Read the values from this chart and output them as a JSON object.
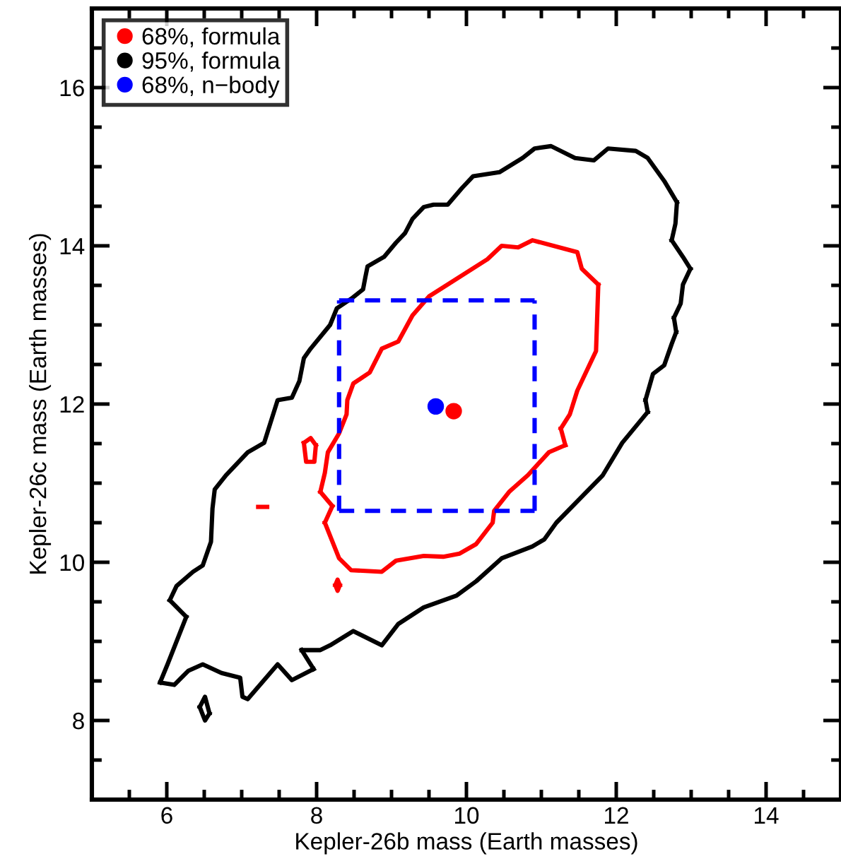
{
  "chart_data": {
    "type": "line",
    "xlabel": "Kepler-26b mass (Earth masses)",
    "ylabel": "Kepler-26c mass (Earth masses)",
    "xlim": [
      5,
      15
    ],
    "ylim": [
      7,
      17
    ],
    "xticks": [
      6,
      8,
      10,
      12,
      14
    ],
    "yticks": [
      8,
      10,
      12,
      14,
      16
    ],
    "grid": false,
    "legend": "top left",
    "marker": "none",
    "series": [
      {
        "name": "68%, formula",
        "color": "#ff0000",
        "x": [
          8.05,
          8.21
        ],
        "values": [
          10.89,
          10.71
        ]
      },
      {
        "color": "#ff0000",
        "x": [
          8.11,
          8.21
        ],
        "values": [
          10.5,
          10.71
        ]
      },
      {
        "color": "#ff0000",
        "x": [
          8.11,
          8.3,
          8.46,
          8.87,
          9.06,
          9.43,
          9.69,
          9.91,
          10.13,
          10.35,
          10.37,
          10.57,
          10.82,
          11.1,
          11.32
        ],
        "values": [
          10.5,
          10.05,
          9.9,
          9.88,
          10.02,
          10.08,
          10.07,
          10.11,
          10.23,
          10.5,
          10.65,
          10.89,
          11.1,
          11.39,
          11.48
        ]
      },
      {
        "color": "#ff0000",
        "x": [
          11.26,
          11.32
        ],
        "values": [
          11.69,
          11.48
        ]
      },
      {
        "color": "#ff0000",
        "x": [
          11.26,
          11.38,
          11.48,
          11.73,
          11.76
        ],
        "values": [
          11.69,
          11.87,
          12.17,
          12.67,
          13.51
        ]
      },
      {
        "color": "#ff0000",
        "x": [
          8.05,
          8.11,
          8.15,
          8.3,
          8.4,
          8.41,
          8.49,
          8.71,
          8.87,
          9.09,
          9.28,
          9.5,
          10.28,
          10.47,
          10.69,
          10.88,
          11.48,
          11.54,
          11.76
        ],
        "values": [
          10.89,
          11.13,
          11.39,
          11.63,
          11.87,
          12.05,
          12.26,
          12.4,
          12.7,
          12.79,
          13.12,
          13.36,
          13.83,
          14.0,
          13.98,
          14.07,
          13.92,
          13.71,
          13.51
        ]
      },
      {
        "color": "#ff0000",
        "x": [
          7.83,
          7.92,
          7.99
        ],
        "values": [
          11.51,
          11.57,
          11.48
        ]
      },
      {
        "color": "#ff0000",
        "x": [
          7.83,
          7.86,
          7.97,
          7.99
        ],
        "values": [
          11.51,
          11.27,
          11.27,
          11.48
        ]
      },
      {
        "color": "#ff0000",
        "x": [
          7.22,
          7.34
        ],
        "values": [
          10.7,
          10.7
        ]
      },
      {
        "color": "#ff0000",
        "x": [
          8.25,
          8.28,
          8.31
        ],
        "values": [
          9.71,
          9.78,
          9.71
        ]
      },
      {
        "color": "#ff0000",
        "x": [
          8.25,
          8.28,
          8.31
        ],
        "values": [
          9.71,
          9.64,
          9.71
        ]
      },
      {
        "name": "95%, formula",
        "color": "#000000",
        "x": [
          5.91,
          6.1,
          6.29,
          6.48,
          6.73,
          6.98,
          7.01,
          7.08,
          7.48,
          7.67,
          7.96
        ],
        "values": [
          8.48,
          8.45,
          8.63,
          8.71,
          8.6,
          8.54,
          8.3,
          8.27,
          8.71,
          8.51,
          8.65
        ]
      },
      {
        "color": "#000000",
        "x": [
          7.8,
          7.96
        ],
        "values": [
          8.89,
          8.65
        ]
      },
      {
        "color": "#000000",
        "x": [
          7.8,
          8.05,
          8.18,
          8.49,
          8.87,
          9.09,
          9.43,
          9.87,
          10.13,
          10.47,
          10.88,
          11.04,
          11.2,
          11.82,
          12.08,
          12.42
        ],
        "values": [
          8.89,
          8.89,
          8.95,
          9.13,
          8.95,
          9.22,
          9.43,
          9.58,
          9.76,
          10.05,
          10.2,
          10.29,
          10.5,
          11.1,
          11.51,
          11.9
        ]
      },
      {
        "color": "#000000",
        "x": [
          12.39,
          12.42
        ],
        "values": [
          12.05,
          11.9
        ]
      },
      {
        "color": "#000000",
        "x": [
          12.39,
          12.49,
          12.64,
          12.74,
          12.8
        ],
        "values": [
          12.05,
          12.38,
          12.49,
          12.76,
          12.91
        ]
      },
      {
        "color": "#000000",
        "x": [
          12.77,
          12.8
        ],
        "values": [
          13.09,
          12.91
        ]
      },
      {
        "color": "#000000",
        "x": [
          12.77,
          12.86,
          12.89,
          12.99
        ],
        "values": [
          13.09,
          13.27,
          13.51,
          13.71
        ]
      },
      {
        "color": "#000000",
        "x": [
          12.74,
          12.89,
          12.99
        ],
        "values": [
          14.07,
          13.86,
          13.71
        ]
      },
      {
        "color": "#000000",
        "x": [
          12.74,
          12.79,
          12.81
        ],
        "values": [
          14.07,
          14.28,
          14.55
        ]
      },
      {
        "color": "#000000",
        "x": [
          6.04,
          6.13,
          6.35,
          6.48,
          6.59,
          6.61,
          6.64,
          6.79,
          7.08,
          7.3,
          7.48,
          7.67,
          7.77,
          7.83,
          7.92,
          8.18,
          8.27,
          8.46,
          8.62,
          8.65,
          8.68,
          8.9,
          9.06,
          9.18,
          9.28,
          9.43,
          9.56,
          9.75,
          9.94,
          10.09,
          10.44,
          10.75,
          10.91,
          11.13,
          11.45,
          11.7,
          11.89,
          12.26,
          12.42,
          12.64,
          12.81
        ],
        "values": [
          9.52,
          9.7,
          9.88,
          9.96,
          10.26,
          10.68,
          10.92,
          11.1,
          11.39,
          11.51,
          12.05,
          12.08,
          12.29,
          12.58,
          12.7,
          13.0,
          13.21,
          13.33,
          13.45,
          13.6,
          13.74,
          13.86,
          14.04,
          14.16,
          14.34,
          14.49,
          14.52,
          14.52,
          14.73,
          14.88,
          14.93,
          15.11,
          15.23,
          15.26,
          15.11,
          15.08,
          15.23,
          15.2,
          15.11,
          14.82,
          14.55
        ]
      },
      {
        "color": "#000000",
        "x": [
          6.04,
          6.26
        ],
        "values": [
          9.52,
          9.31
        ]
      },
      {
        "color": "#000000",
        "x": [
          5.91,
          6.01,
          6.16,
          6.26
        ],
        "values": [
          8.48,
          8.71,
          9.07,
          9.31
        ]
      },
      {
        "color": "#000000",
        "x": [
          6.44,
          6.51,
          6.57
        ],
        "values": [
          8.17,
          8.3,
          8.09
        ]
      },
      {
        "color": "#000000",
        "x": [
          6.44,
          6.51,
          6.57
        ],
        "values": [
          8.17,
          8.0,
          8.09
        ]
      },
      {
        "name": "68%, n−body",
        "color": "#0000ff",
        "line_style": "dashed",
        "x": [
          8.3,
          10.91
        ],
        "values": [
          13.31,
          13.31
        ]
      },
      {
        "color": "#0000ff",
        "line_style": "dashed",
        "x": [
          8.3,
          10.91
        ],
        "values": [
          10.65,
          10.65
        ]
      },
      {
        "color": "#0000ff",
        "line_style": "dashed",
        "x": [
          8.3,
          8.3
        ],
        "values": [
          10.65,
          13.31
        ]
      },
      {
        "color": "#0000ff",
        "line_style": "dashed",
        "x": [
          10.91,
          10.91
        ],
        "values": [
          10.65,
          13.31
        ]
      },
      {
        "color": "#ff0000",
        "type": "scatter",
        "marker": "circle",
        "x": [
          9.83
        ],
        "values": [
          11.91
        ]
      },
      {
        "color": "#0000ff",
        "type": "scatter",
        "marker": "circle",
        "x": [
          9.59
        ],
        "values": [
          11.97
        ]
      }
    ]
  }
}
